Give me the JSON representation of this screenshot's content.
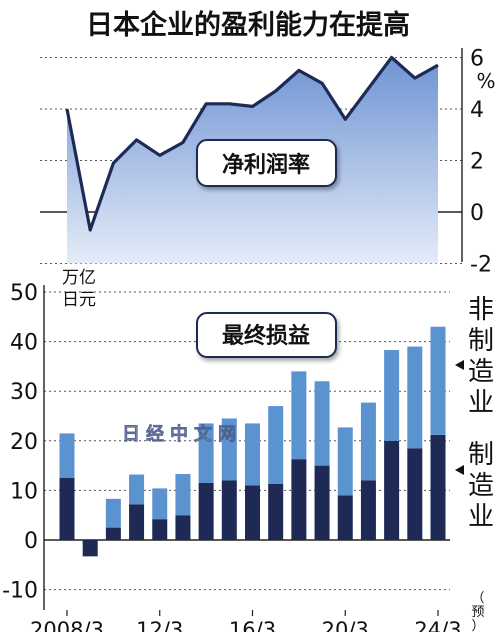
{
  "title": "日本企业的盈利能力在提高",
  "watermark": "日经中文网",
  "top_chart": {
    "label": "净利润率",
    "unit": "%",
    "yticks": [
      "6",
      "4",
      "2",
      "0",
      "-2"
    ]
  },
  "bottom_chart": {
    "label": "最终损益",
    "unit_line1": "万亿",
    "unit_line2": "日元",
    "yticks": [
      "50",
      "40",
      "30",
      "20",
      "10",
      "0",
      "-10"
    ],
    "xticks": [
      "2008/3",
      "12/3",
      "16/3",
      "20/3",
      "24/3"
    ],
    "forecast_note": "（预）",
    "legend_nonmfg": [
      "非",
      "制",
      "造",
      "业"
    ],
    "legend_mfg": [
      "制",
      "造",
      "业"
    ]
  },
  "colors": {
    "dark_navy": "#1e2a55",
    "light_blue": "#5b93d0",
    "line": "#1e2a55",
    "area_top": "#6f93d3",
    "area_bottom": "#e4ecf8"
  },
  "chart_data": [
    {
      "type": "area",
      "title": "净利润率",
      "ylabel": "%",
      "ylim": [
        -2,
        6.5
      ],
      "x": [
        "2008/3",
        "09/3",
        "10/3",
        "11/3",
        "12/3",
        "13/3",
        "14/3",
        "15/3",
        "16/3",
        "17/3",
        "18/3",
        "19/3",
        "20/3",
        "21/3",
        "22/3",
        "23/3",
        "24/3"
      ],
      "values": [
        4.0,
        -0.7,
        1.9,
        2.8,
        2.2,
        2.7,
        4.2,
        4.2,
        4.1,
        4.7,
        5.5,
        5.0,
        3.6,
        4.8,
        6.0,
        5.2,
        5.7
      ]
    },
    {
      "type": "bar",
      "stacked": true,
      "title": "最终损益",
      "ylabel": "万亿日元",
      "ylim": [
        -10,
        50
      ],
      "categories": [
        "2008/3",
        "09/3",
        "10/3",
        "11/3",
        "12/3",
        "13/3",
        "14/3",
        "15/3",
        "16/3",
        "17/3",
        "18/3",
        "19/3",
        "20/3",
        "21/3",
        "22/3",
        "23/3",
        "24/3"
      ],
      "series": [
        {
          "name": "制造业",
          "values": [
            12.5,
            -3.3,
            2.5,
            7.2,
            4.2,
            5.0,
            11.5,
            12.0,
            11.0,
            11.3,
            16.3,
            15.0,
            9.0,
            12.0,
            20.0,
            18.5,
            21.2
          ]
        },
        {
          "name": "非制造业",
          "values": [
            9.0,
            0,
            5.8,
            6.0,
            6.2,
            8.3,
            12.0,
            12.5,
            12.5,
            15.7,
            17.7,
            17.0,
            13.7,
            15.7,
            18.3,
            20.5,
            21.8
          ]
        }
      ]
    }
  ]
}
